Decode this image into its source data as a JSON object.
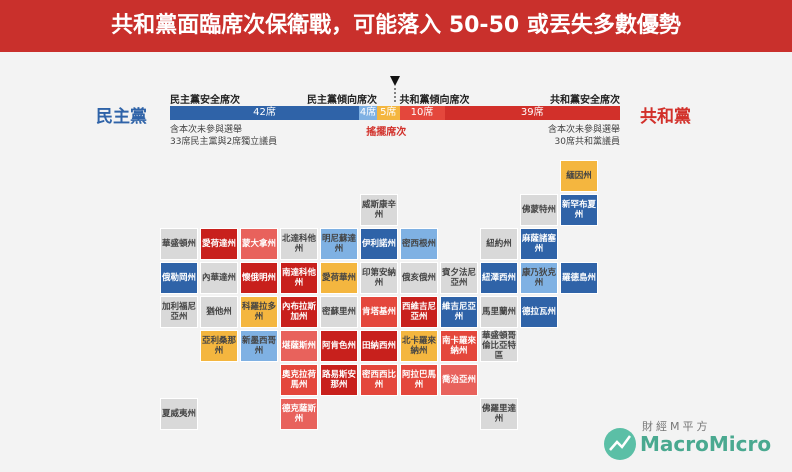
{
  "header": {
    "title": "共和黨面臨席次保衛戰，可能落入 50-50 或丟失多數優勢"
  },
  "parties": {
    "left": "民主黨",
    "right": "共和黨"
  },
  "seat_bar": {
    "segments": [
      {
        "name": "民主黨安全席次",
        "value": 42,
        "value_label": "42席",
        "color": "#2f63a8"
      },
      {
        "name": "民主黨傾向席次",
        "value": 4,
        "value_label": "4席",
        "color": "#7fb1e3"
      },
      {
        "name": "搖擺席次",
        "value": 5,
        "value_label": "5席",
        "color": "#f4b63f"
      },
      {
        "name": "共和黨傾向席次",
        "value": 10,
        "value_label": "10席",
        "color": "#e4473c"
      },
      {
        "name": "共和黨安全席次",
        "value": 39,
        "value_label": "39席",
        "color": "#d2302a"
      }
    ],
    "left_note": [
      "含本次未參與選舉",
      "33席民主黨與2席獨立議員"
    ],
    "right_note": [
      "含本次未參與選舉",
      "30席共和黨議員"
    ]
  },
  "states": [
    {
      "label": "緬因州",
      "color": "#f4b63f"
    },
    {
      "label": "佛蒙特州",
      "color": "#d9d9d9"
    },
    {
      "label": "新罕布夏州",
      "color": "#2f63a8"
    },
    {
      "label": "華盛頓州",
      "color": "#d9d9d9"
    },
    {
      "label": "愛荷達州",
      "color": "#c8201c"
    },
    {
      "label": "蒙大拿州",
      "color": "#e8625c"
    },
    {
      "label": "北達科他州",
      "color": "#d9d9d9"
    },
    {
      "label": "明尼蘇達州",
      "color": "#7fb1e3"
    },
    {
      "label": "威斯康辛州",
      "color": "#d9d9d9"
    },
    {
      "label": "伊利諾州",
      "color": "#2f63a8"
    },
    {
      "label": "密西根州",
      "color": "#7fb1e3"
    },
    {
      "label": "紐約州",
      "color": "#d9d9d9"
    },
    {
      "label": "麻薩諸塞州",
      "color": "#2f63a8"
    },
    {
      "label": "俄勒岡州",
      "color": "#2f63a8"
    },
    {
      "label": "內華達州",
      "color": "#d9d9d9"
    },
    {
      "label": "懷俄明州",
      "color": "#c8201c"
    },
    {
      "label": "南達科他州",
      "color": "#c8201c"
    },
    {
      "label": "愛荷華州",
      "color": "#f4b63f"
    },
    {
      "label": "印第安納州",
      "color": "#d9d9d9"
    },
    {
      "label": "俄亥俄州",
      "color": "#d9d9d9"
    },
    {
      "label": "賓夕法尼亞州",
      "color": "#d9d9d9"
    },
    {
      "label": "紐澤西州",
      "color": "#2f63a8"
    },
    {
      "label": "康乃狄克州",
      "color": "#7fb1e3"
    },
    {
      "label": "羅德島州",
      "color": "#2f63a8"
    },
    {
      "label": "加利福尼亞州",
      "color": "#d9d9d9"
    },
    {
      "label": "猶他州",
      "color": "#d9d9d9"
    },
    {
      "label": "科羅拉多州",
      "color": "#f4b63f"
    },
    {
      "label": "內布拉斯加州",
      "color": "#c8201c"
    },
    {
      "label": "密蘇里州",
      "color": "#d9d9d9"
    },
    {
      "label": "肯塔基州",
      "color": "#e4473c"
    },
    {
      "label": "西維吉尼亞州",
      "color": "#c8201c"
    },
    {
      "label": "維吉尼亞州",
      "color": "#2f63a8"
    },
    {
      "label": "馬里蘭州",
      "color": "#d9d9d9"
    },
    {
      "label": "德拉瓦州",
      "color": "#2f63a8"
    },
    {
      "label": "亞利桑那州",
      "color": "#f4b63f"
    },
    {
      "label": "新墨西哥州",
      "color": "#7fb1e3"
    },
    {
      "label": "堪薩斯州",
      "color": "#e8625c"
    },
    {
      "label": "阿肯色州",
      "color": "#c8201c"
    },
    {
      "label": "田納西州",
      "color": "#c8201c"
    },
    {
      "label": "北卡羅來納州",
      "color": "#f4b63f"
    },
    {
      "label": "南卡羅來納州",
      "color": "#e4473c"
    },
    {
      "label": "華盛頓哥倫比亞特區",
      "color": "#d9d9d9"
    },
    {
      "label": "奧克拉荷馬州",
      "color": "#e4473c"
    },
    {
      "label": "路易斯安那州",
      "color": "#c8201c"
    },
    {
      "label": "密西西比州",
      "color": "#e4473c"
    },
    {
      "label": "阿拉巴馬州",
      "color": "#e4473c"
    },
    {
      "label": "喬治亞州",
      "color": "#e8625c"
    },
    {
      "label": "夏威夷州",
      "color": "#d9d9d9"
    },
    {
      "label": "德克薩斯州",
      "color": "#e8625c"
    },
    {
      "label": "佛羅里達州",
      "color": "#d9d9d9"
    }
  ],
  "logo": {
    "name": "財經M平方",
    "brand": "MacroMicro"
  }
}
